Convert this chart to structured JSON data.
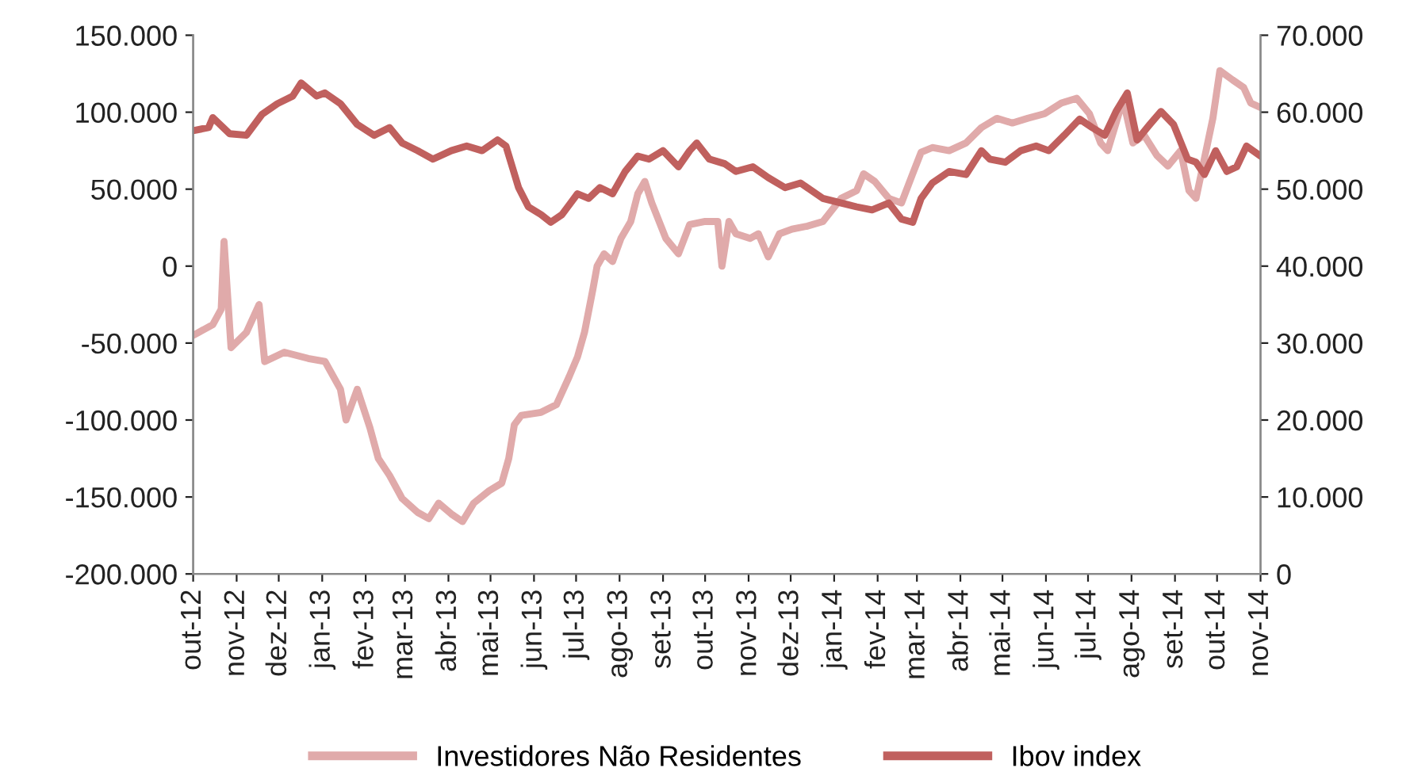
{
  "chart_data": {
    "type": "line",
    "legend": "bottom",
    "grid": false,
    "marker": "none",
    "line_style": "solid",
    "xlim": [
      "2012-10-01",
      "2014-11-01"
    ],
    "xticks": [
      {
        "value": "2012-10-01",
        "label": "out-12"
      },
      {
        "value": "2012-11-01",
        "label": "nov-12"
      },
      {
        "value": "2012-12-01",
        "label": "dez-12"
      },
      {
        "value": "2013-01-01",
        "label": "jan-13"
      },
      {
        "value": "2013-02-01",
        "label": "fev-13"
      },
      {
        "value": "2013-03-01",
        "label": "mar-13"
      },
      {
        "value": "2013-04-01",
        "label": "abr-13"
      },
      {
        "value": "2013-05-01",
        "label": "mai-13"
      },
      {
        "value": "2013-06-01",
        "label": "jun-13"
      },
      {
        "value": "2013-07-01",
        "label": "jul-13"
      },
      {
        "value": "2013-08-01",
        "label": "ago-13"
      },
      {
        "value": "2013-09-01",
        "label": "set-13"
      },
      {
        "value": "2013-10-01",
        "label": "out-13"
      },
      {
        "value": "2013-11-01",
        "label": "nov-13"
      },
      {
        "value": "2013-12-01",
        "label": "dez-13"
      },
      {
        "value": "2014-01-01",
        "label": "jan-14"
      },
      {
        "value": "2014-02-01",
        "label": "fev-14"
      },
      {
        "value": "2014-03-01",
        "label": "mar-14"
      },
      {
        "value": "2014-04-01",
        "label": "abr-14"
      },
      {
        "value": "2014-05-01",
        "label": "mai-14"
      },
      {
        "value": "2014-06-01",
        "label": "jun-14"
      },
      {
        "value": "2014-07-01",
        "label": "jul-14"
      },
      {
        "value": "2014-08-01",
        "label": "ago-14"
      },
      {
        "value": "2014-09-01",
        "label": "set-14"
      },
      {
        "value": "2014-10-01",
        "label": "out-14"
      },
      {
        "value": "2014-11-01",
        "label": "nov-14"
      }
    ],
    "ylim": [
      -200000,
      150000
    ],
    "yticks": [
      {
        "value": -200000,
        "label": "-200.000"
      },
      {
        "value": -150000,
        "label": "-150.000"
      },
      {
        "value": -100000,
        "label": "-100.000"
      },
      {
        "value": -50000,
        "label": "-50.000"
      },
      0,
      {
        "value": 50000,
        "label": "50.000"
      },
      {
        "value": 100000,
        "label": "100.000"
      },
      {
        "value": 150000,
        "label": "150.000"
      }
    ],
    "y2lim": [
      0,
      70000
    ],
    "y2ticks": [
      0,
      {
        "value": 10000,
        "label": "10.000"
      },
      {
        "value": 20000,
        "label": "20.000"
      },
      {
        "value": 30000,
        "label": "30.000"
      },
      {
        "value": 40000,
        "label": "40.000"
      },
      {
        "value": 50000,
        "label": "50.000"
      },
      {
        "value": 60000,
        "label": "60.000"
      },
      {
        "value": 70000,
        "label": "70.000"
      }
    ],
    "series": [
      {
        "name": "Investidores Não Residentes",
        "color": "#e0aaaa",
        "x": [
          "2012-10-01",
          "2012-10-15",
          "2012-10-21",
          "2012-10-23",
          "2012-10-28",
          "2012-11-08",
          "2012-11-17",
          "2012-11-21",
          "2012-12-05",
          "2012-12-22",
          "2013-01-03",
          "2013-01-14",
          "2013-01-18",
          "2013-01-26",
          "2013-02-04",
          "2013-02-10",
          "2013-02-18",
          "2013-02-27",
          "2013-03-10",
          "2013-03-18",
          "2013-03-25",
          "2013-04-03",
          "2013-04-11",
          "2013-04-19",
          "2013-04-30",
          "2013-05-09",
          "2013-05-14",
          "2013-05-18",
          "2013-05-23",
          "2013-06-06",
          "2013-06-17",
          "2013-06-26",
          "2013-07-02",
          "2013-07-07",
          "2013-07-13",
          "2013-07-16",
          "2013-07-21",
          "2013-07-27",
          "2013-08-02",
          "2013-08-09",
          "2013-08-14",
          "2013-08-19",
          "2013-08-24",
          "2013-09-03",
          "2013-09-12",
          "2013-09-20",
          "2013-10-01",
          "2013-10-10",
          "2013-10-13",
          "2013-10-18",
          "2013-10-23",
          "2013-11-02",
          "2013-11-08",
          "2013-11-15",
          "2013-11-23",
          "2013-12-02",
          "2013-12-13",
          "2013-12-24",
          "2014-01-06",
          "2014-01-17",
          "2014-01-22",
          "2014-01-30",
          "2014-02-09",
          "2014-02-18",
          "2014-02-26",
          "2014-03-04",
          "2014-03-12",
          "2014-03-24",
          "2014-04-05",
          "2014-04-16",
          "2014-04-27",
          "2014-05-08",
          "2014-05-19",
          "2014-05-31",
          "2014-06-12",
          "2014-06-23",
          "2014-07-02",
          "2014-07-10",
          "2014-07-15",
          "2014-07-26",
          "2014-08-02",
          "2014-08-10",
          "2014-08-19",
          "2014-08-27",
          "2014-09-05",
          "2014-09-11",
          "2014-09-16",
          "2014-09-22",
          "2014-09-28",
          "2014-10-03",
          "2014-10-12",
          "2014-10-20",
          "2014-10-25",
          "2014-11-01"
        ],
        "values": [
          -45000,
          -38000,
          -28000,
          16000,
          -53000,
          -43000,
          -25000,
          -62000,
          -56000,
          -60000,
          -62000,
          -80000,
          -100000,
          -80000,
          -105000,
          -125000,
          -136000,
          -151000,
          -160000,
          -164000,
          -154000,
          -161000,
          -166000,
          -154000,
          -146000,
          -141000,
          -125000,
          -103000,
          -97000,
          -95000,
          -90000,
          -72000,
          -59000,
          -43000,
          -15000,
          0,
          8000,
          3000,
          18000,
          29000,
          47000,
          55000,
          41000,
          18000,
          8000,
          27000,
          29000,
          29000,
          0,
          29000,
          21000,
          18000,
          21000,
          6000,
          21000,
          24000,
          26000,
          29000,
          44000,
          49000,
          60000,
          55000,
          44000,
          41000,
          60000,
          74000,
          77000,
          75000,
          80000,
          90000,
          96000,
          93000,
          96000,
          99000,
          106000,
          109000,
          99000,
          80000,
          75000,
          108000,
          80000,
          85000,
          72000,
          65000,
          75000,
          49000,
          44000,
          70000,
          96000,
          127000,
          121000,
          116000,
          106000,
          103000
        ]
      },
      {
        "name": "Ibov index",
        "color": "#c0605e",
        "axis": "y2",
        "x": [
          "2012-10-01",
          "2012-10-12",
          "2012-10-15",
          "2012-10-27",
          "2012-11-08",
          "2012-11-19",
          "2012-11-30",
          "2012-12-11",
          "2012-12-17",
          "2012-12-28",
          "2013-01-03",
          "2013-01-14",
          "2013-01-26",
          "2013-02-07",
          "2013-02-18",
          "2013-02-27",
          "2013-03-10",
          "2013-03-21",
          "2013-04-03",
          "2013-04-14",
          "2013-04-25",
          "2013-05-06",
          "2013-05-12",
          "2013-05-21",
          "2013-05-28",
          "2013-06-06",
          "2013-06-13",
          "2013-06-21",
          "2013-07-02",
          "2013-07-10",
          "2013-07-18",
          "2013-07-27",
          "2013-08-05",
          "2013-08-14",
          "2013-08-22",
          "2013-09-01",
          "2013-09-12",
          "2013-09-20",
          "2013-09-25",
          "2013-10-04",
          "2013-10-15",
          "2013-10-23",
          "2013-11-04",
          "2013-11-15",
          "2013-11-27",
          "2013-12-08",
          "2013-12-16",
          "2013-12-24",
          "2014-01-06",
          "2014-01-17",
          "2014-01-28",
          "2014-02-09",
          "2014-02-18",
          "2014-02-26",
          "2014-03-04",
          "2014-03-12",
          "2014-03-24",
          "2014-04-05",
          "2014-04-16",
          "2014-04-22",
          "2014-05-03",
          "2014-05-14",
          "2014-05-25",
          "2014-06-03",
          "2014-06-14",
          "2014-06-25",
          "2014-07-04",
          "2014-07-13",
          "2014-07-21",
          "2014-07-29",
          "2014-08-05",
          "2014-08-14",
          "2014-08-22",
          "2014-08-31",
          "2014-09-10",
          "2014-09-16",
          "2014-09-22",
          "2014-09-30",
          "2014-10-08",
          "2014-10-15",
          "2014-10-22",
          "2014-11-01"
        ],
        "values": [
          57600,
          58000,
          59300,
          57200,
          57000,
          59700,
          61100,
          62100,
          63800,
          62100,
          62500,
          61100,
          58400,
          57000,
          58000,
          56000,
          55000,
          53900,
          55000,
          55600,
          55000,
          56400,
          55600,
          50200,
          47700,
          46700,
          45700,
          46700,
          49400,
          48800,
          50200,
          49400,
          52300,
          54300,
          53900,
          55000,
          52900,
          55000,
          56000,
          53900,
          53300,
          52300,
          52900,
          51500,
          50200,
          50800,
          49800,
          48800,
          48200,
          47700,
          47300,
          48200,
          46100,
          45700,
          48800,
          50800,
          52300,
          51900,
          55000,
          53900,
          53500,
          55000,
          55600,
          55000,
          57000,
          59100,
          58000,
          57000,
          60100,
          62500,
          56400,
          58400,
          60100,
          58400,
          53900,
          53500,
          51900,
          55000,
          52300,
          52900,
          55600,
          54300
        ]
      }
    ]
  }
}
